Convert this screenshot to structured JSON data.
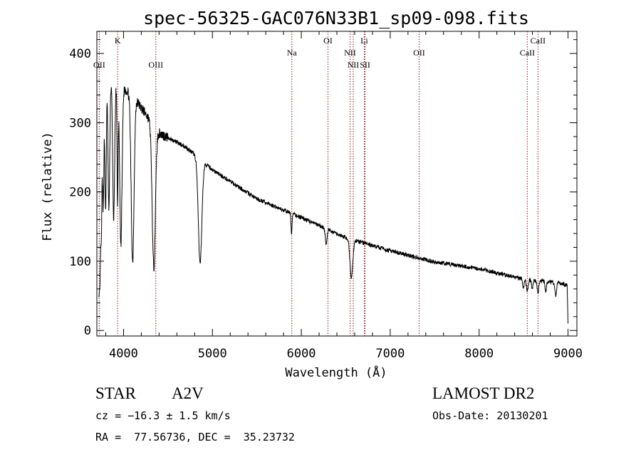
{
  "chart_data": {
    "type": "line",
    "title": "spec-56325-GAC076N33B1_sp09-098.fits",
    "xlabel": "Wavelength (Å)",
    "ylabel": "Flux (relative)",
    "xlim": [
      3700,
      9100
    ],
    "ylim": [
      -8,
      432
    ],
    "x_ticks": [
      4000,
      5000,
      6000,
      7000,
      8000,
      9000
    ],
    "y_ticks": [
      0,
      100,
      200,
      300,
      400
    ],
    "grid": false,
    "line_color": "#000000",
    "marker_color": "#8b1a1a",
    "continuum": [
      [
        3720,
        380
      ],
      [
        3900,
        360
      ],
      [
        4100,
        340
      ],
      [
        4400,
        285
      ],
      [
        4700,
        265
      ],
      [
        5000,
        232
      ],
      [
        5500,
        190
      ],
      [
        6000,
        163
      ],
      [
        6500,
        134
      ],
      [
        7000,
        115
      ],
      [
        7500,
        99
      ],
      [
        8000,
        89
      ],
      [
        8500,
        74
      ],
      [
        8900,
        69
      ],
      [
        8990,
        65
      ],
      [
        9000,
        10
      ]
    ],
    "absorption_lines": [
      {
        "center": 3720,
        "width": 8,
        "depth": 300
      },
      {
        "center": 3735,
        "width": 7,
        "depth": 240
      },
      {
        "center": 3750,
        "width": 7,
        "depth": 220
      },
      {
        "center": 3771,
        "width": 8,
        "depth": 200
      },
      {
        "center": 3798,
        "width": 8,
        "depth": 200
      },
      {
        "center": 3835,
        "width": 10,
        "depth": 190
      },
      {
        "center": 3889,
        "width": 11,
        "depth": 200
      },
      {
        "center": 3933,
        "width": 6,
        "depth": 170
      },
      {
        "center": 3970,
        "width": 13,
        "depth": 230
      },
      {
        "center": 4102,
        "width": 16,
        "depth": 240
      },
      {
        "center": 4340,
        "width": 18,
        "depth": 205
      },
      {
        "center": 4861,
        "width": 20,
        "depth": 150
      },
      {
        "center": 5890,
        "width": 6,
        "depth": 28
      },
      {
        "center": 6280,
        "width": 10,
        "depth": 22
      },
      {
        "center": 6563,
        "width": 16,
        "depth": 55
      },
      {
        "center": 8498,
        "width": 9,
        "depth": 13
      },
      {
        "center": 8542,
        "width": 10,
        "depth": 16
      },
      {
        "center": 8598,
        "width": 8,
        "depth": 12
      },
      {
        "center": 8662,
        "width": 10,
        "depth": 17
      },
      {
        "center": 8750,
        "width": 8,
        "depth": 14
      },
      {
        "center": 8863,
        "width": 9,
        "depth": 20
      }
    ],
    "noise_amplitude": 3,
    "markers": [
      {
        "label": "OII",
        "x": 3727,
        "tier": 2
      },
      {
        "label": "K",
        "x": 3934,
        "tier": 0
      },
      {
        "label": "OIII",
        "x": 4363,
        "tier": 2
      },
      {
        "label": "Na",
        "x": 5893,
        "tier": 1
      },
      {
        "label": "OI",
        "x": 6300,
        "tier": 0
      },
      {
        "label": "NII",
        "x": 6548,
        "tier": 1
      },
      {
        "label": "NII",
        "x": 6584,
        "tier": 2
      },
      {
        "label": "Li",
        "x": 6708,
        "tier": 0
      },
      {
        "label": "SII",
        "x": 6717,
        "tier": 2
      },
      {
        "label": "OII",
        "x": 7325,
        "tier": 1
      },
      {
        "label": "CaII",
        "x": 8542,
        "tier": 1
      },
      {
        "label": "CaII",
        "x": 8662,
        "tier": 0
      }
    ]
  },
  "info": {
    "object_class": "STAR",
    "subclass": "A2V",
    "survey": "LAMOST DR2",
    "redshift": "cz = −16.3 ± 1.5 km/s",
    "obs_date": "Obs-Date: 20130201",
    "coordinates": "RA =  77.56736, DEC =  35.23732"
  }
}
